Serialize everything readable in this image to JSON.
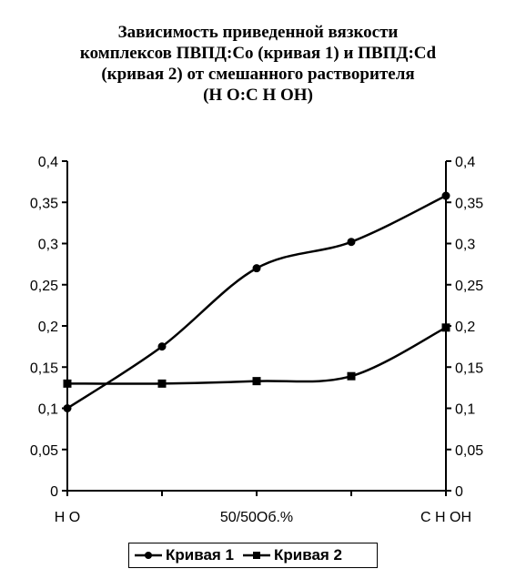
{
  "chart_data": {
    "type": "line",
    "title_lines": [
      "Зависимость приведенной вязкости",
      "комплексов ПВПД:Co (кривая 1) и ПВПД:Cd",
      "(кривая 2) от смешанного растворителя",
      "(H  O:C H OH)"
    ],
    "categories": [
      "",
      "",
      "",
      "",
      ""
    ],
    "x_tick_labels": [
      "H O",
      "50/50Об.%",
      "C H OH"
    ],
    "ylim": [
      0,
      0.4
    ],
    "y_ticks": [
      "0",
      "0,05",
      "0,1",
      "0,15",
      "0,2",
      "0,25",
      "0,3",
      "0,35",
      "0,4"
    ],
    "y_tick_values": [
      0,
      0.05,
      0.1,
      0.15,
      0.2,
      0.25,
      0.3,
      0.35,
      0.4
    ],
    "secondary_y_axis": true,
    "grid": false,
    "legend_position": "bottom",
    "series": [
      {
        "name": "Кривая 1",
        "marker": "circle",
        "color": "#000000",
        "values": [
          0.1,
          0.175,
          0.27,
          0.302,
          0.358
        ]
      },
      {
        "name": "Кривая 2",
        "marker": "square",
        "color": "#000000",
        "values": [
          0.13,
          0.13,
          0.133,
          0.139,
          0.198
        ]
      }
    ]
  }
}
